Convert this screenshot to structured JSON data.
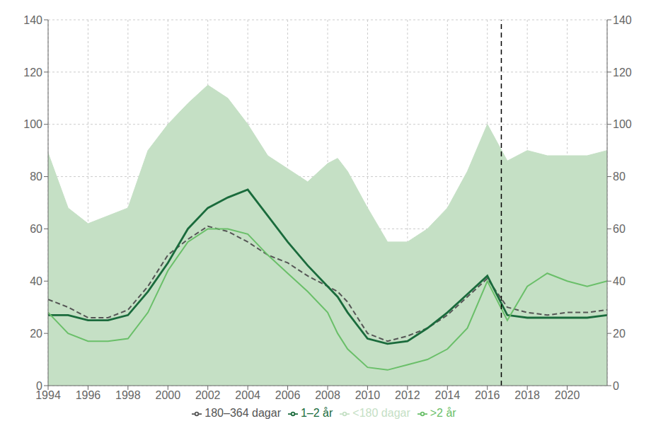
{
  "chart_data": {
    "type": "line",
    "x": [
      1994,
      1995,
      1996,
      1997,
      1998,
      1999,
      2000,
      2001,
      2002,
      2003,
      2004,
      2005,
      2006,
      2007,
      2008,
      2008.5,
      2009,
      2010,
      2011,
      2012,
      2013,
      2014,
      2015,
      2016,
      2017,
      2018,
      2019,
      2020,
      2021,
      2022
    ],
    "series": [
      {
        "name": "<180 dagar",
        "type": "area",
        "color": "#c5e0c5",
        "values": [
          89,
          68,
          62,
          65,
          68,
          90,
          100,
          108,
          115,
          110,
          100,
          88,
          83,
          78,
          85,
          87,
          82,
          68,
          55,
          55,
          60,
          68,
          82,
          100,
          86,
          90,
          88,
          88,
          88,
          90
        ]
      },
      {
        "name": "180–364 dagar",
        "type": "line",
        "color": "#555555",
        "line_style": "dashed",
        "values": [
          33,
          30,
          26,
          26,
          29,
          38,
          50,
          56,
          61,
          59,
          55,
          50,
          47,
          42,
          38,
          36,
          32,
          20,
          17,
          19,
          22,
          27,
          34,
          41,
          30,
          28,
          27,
          28,
          28,
          29
        ]
      },
      {
        "name": "1–2 år",
        "type": "line",
        "color": "#1a6b3c",
        "line_style": "solid",
        "values": [
          27,
          27,
          25,
          25,
          27,
          36,
          47,
          60,
          68,
          72,
          75,
          65,
          55,
          46,
          38,
          34,
          28,
          18,
          16,
          17,
          22,
          28,
          35,
          42,
          27,
          26,
          26,
          26,
          26,
          27
        ]
      },
      {
        "name": ">2 år",
        "type": "line",
        "color": "#6abf69",
        "line_style": "solid",
        "values": [
          28,
          20,
          17,
          17,
          18,
          28,
          44,
          55,
          60,
          60,
          58,
          50,
          43,
          36,
          28,
          20,
          14,
          7,
          6,
          8,
          10,
          14,
          22,
          40,
          25,
          38,
          43,
          40,
          38,
          40
        ]
      }
    ],
    "vline_x": 2016.7,
    "xlim": [
      1994,
      2022
    ],
    "xticks": [
      1994,
      1996,
      1998,
      2000,
      2002,
      2004,
      2006,
      2008,
      2010,
      2012,
      2014,
      2016,
      2018,
      2020
    ],
    "ylim": [
      0,
      140
    ],
    "yticks": [
      0,
      20,
      40,
      60,
      80,
      100,
      120,
      140
    ],
    "y2lim": [
      0,
      140
    ],
    "y2ticks": [
      0,
      20,
      40,
      60,
      80,
      100,
      120,
      140
    ],
    "grid": true,
    "legend": "bottom"
  }
}
